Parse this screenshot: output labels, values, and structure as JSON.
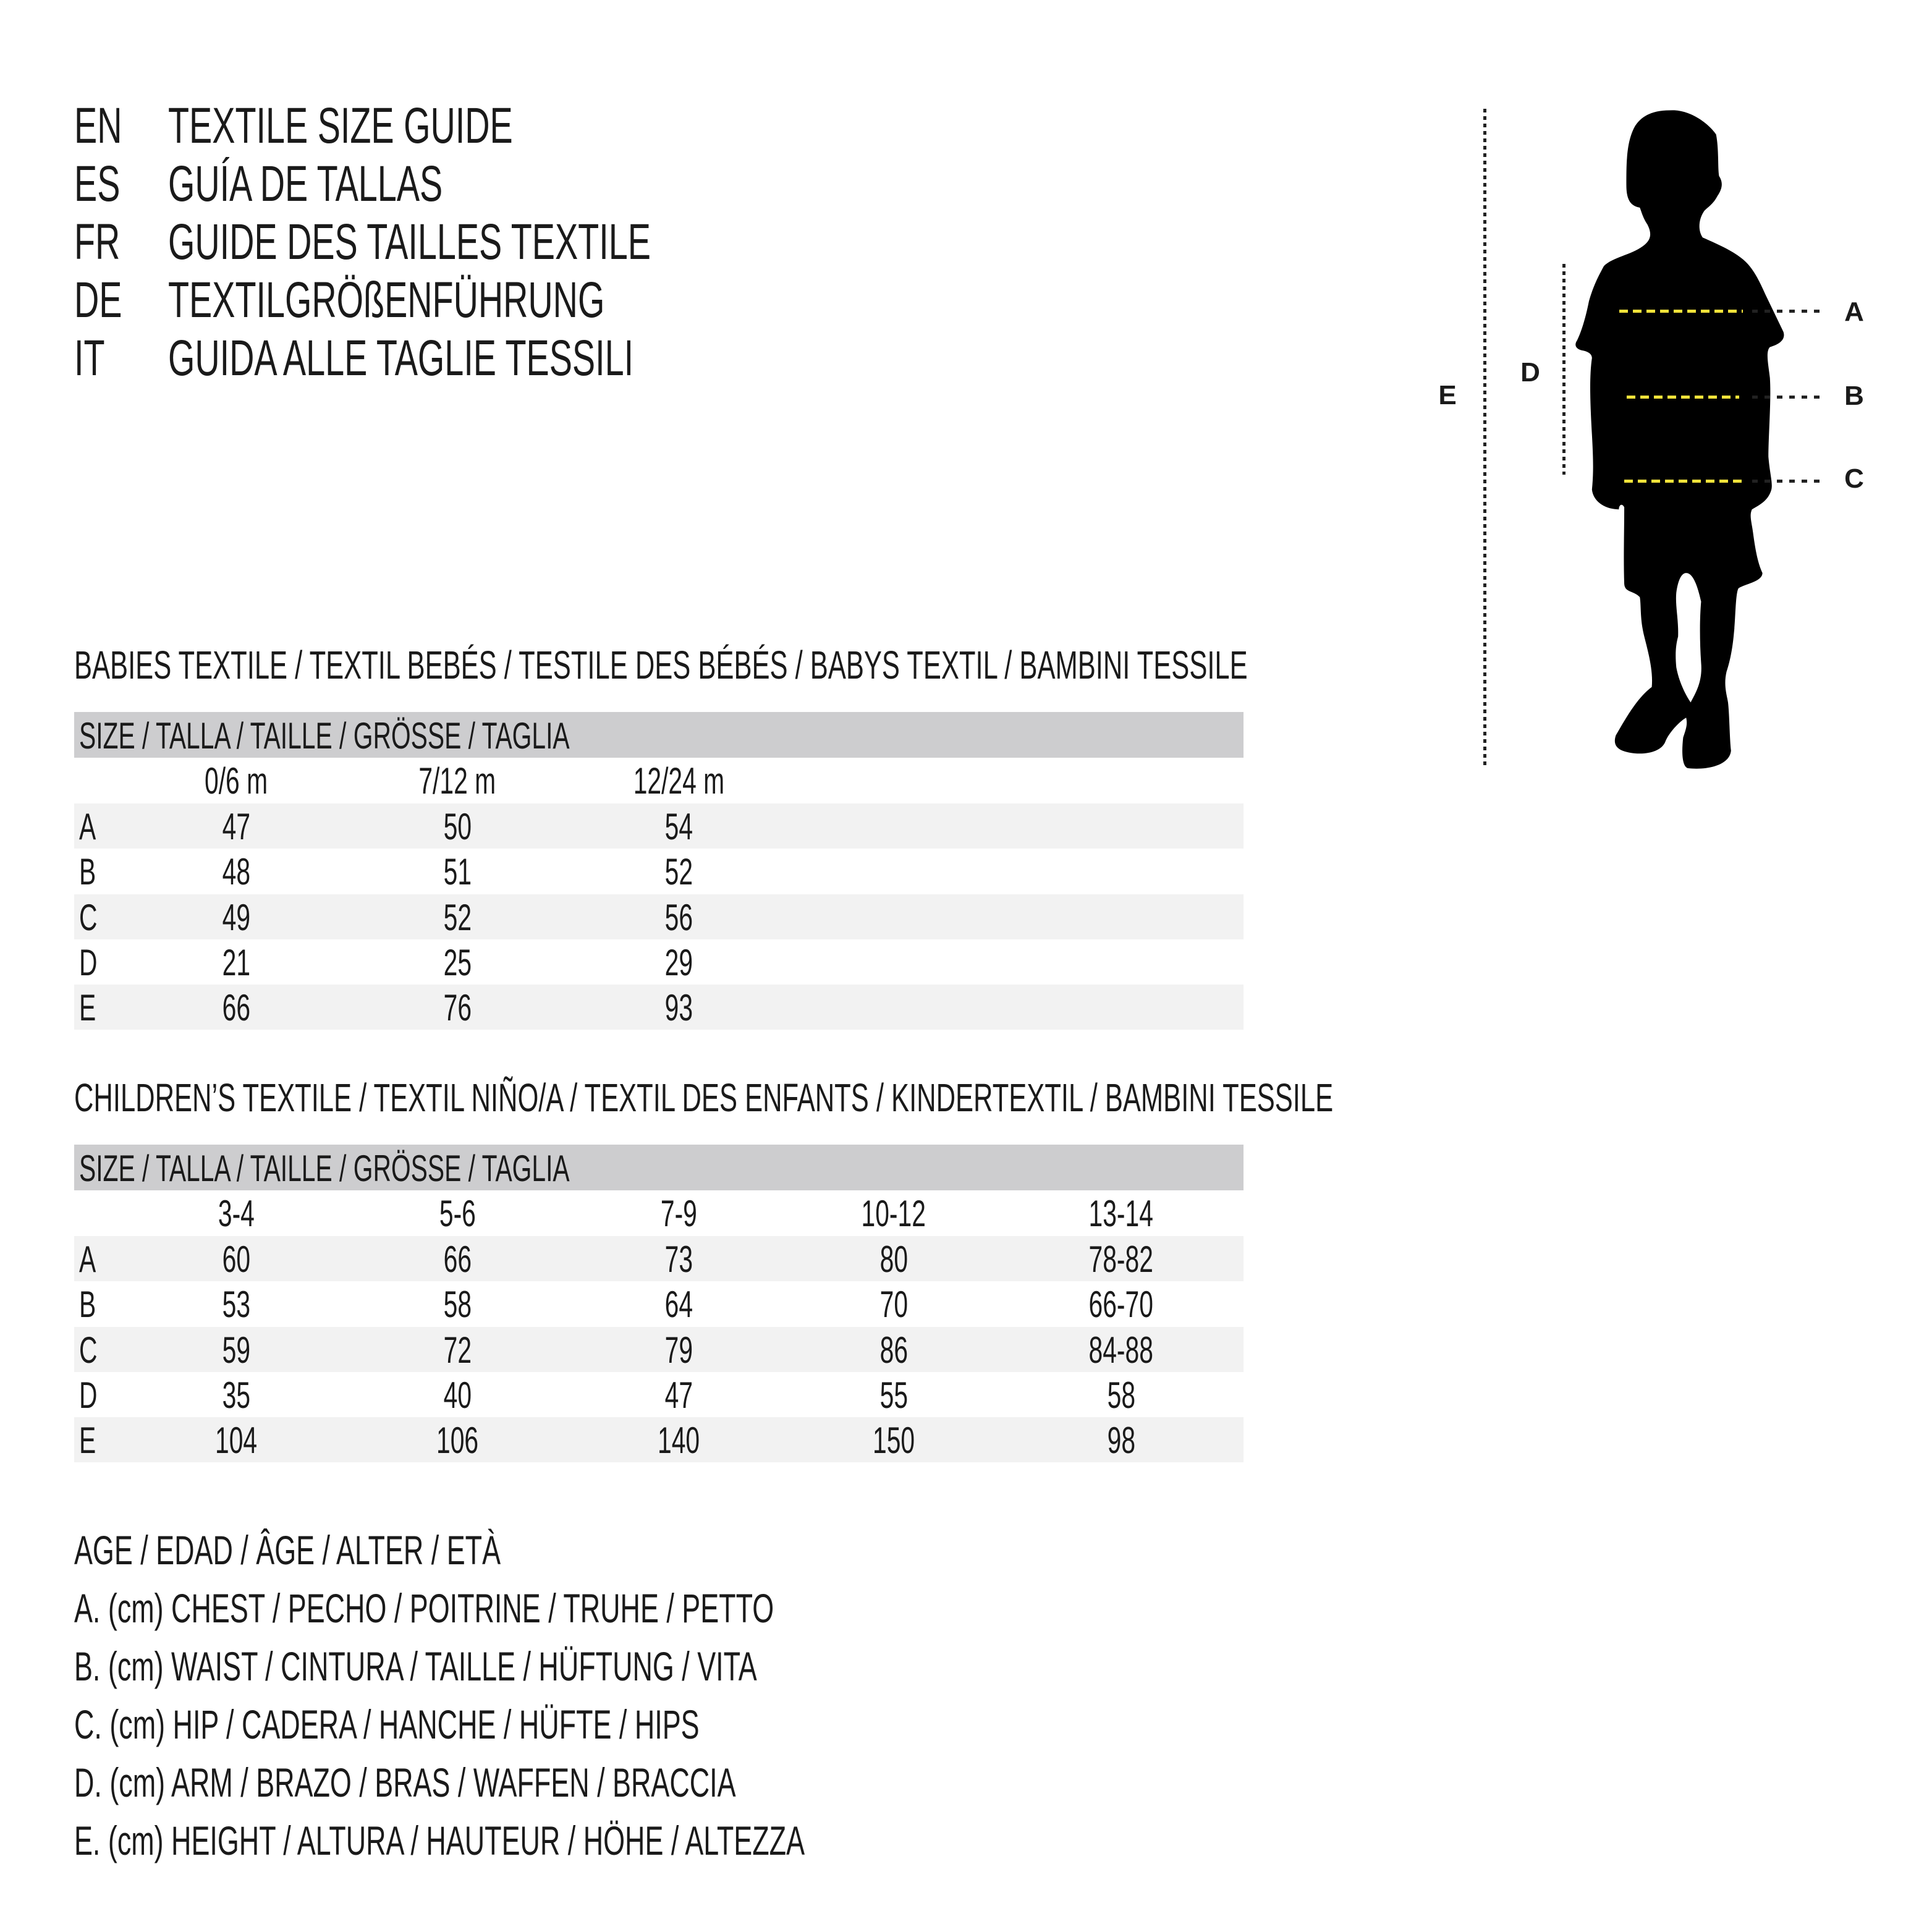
{
  "header": {
    "lines": [
      {
        "code": "EN",
        "text": "TEXTILE SIZE GUIDE"
      },
      {
        "code": "ES",
        "text": "GUÍA DE TALLAS"
      },
      {
        "code": "FR",
        "text": "GUIDE DES TAILLES TEXTILE"
      },
      {
        "code": "DE",
        "text": "TEXTILGRÖßENFÜHRUNG"
      },
      {
        "code": "IT",
        "text": "GUIDA ALLE TAGLIE TESSILI"
      }
    ]
  },
  "figure": {
    "labels": {
      "A": "A",
      "B": "B",
      "C": "C",
      "D": "D",
      "E": "E"
    },
    "colors": {
      "silhouette": "#000000",
      "measure_line": "#f2e23a",
      "guide_line": "#222222"
    }
  },
  "babies": {
    "title": "BABIES TEXTILE / TEXTIL BEBÉS / TESTILE DES BÉBÉS / BABYS TEXTIL / BAMBINI TESSILE",
    "size_header": "SIZE / TALLA / TAILLE / GRÖSSE / TAGLIA",
    "columns": [
      "0/6 m",
      "7/12 m",
      "12/24 m"
    ],
    "rows": [
      {
        "label": "A",
        "values": [
          "47",
          "50",
          "54"
        ]
      },
      {
        "label": "B",
        "values": [
          "48",
          "51",
          "52"
        ]
      },
      {
        "label": "C",
        "values": [
          "49",
          "52",
          "56"
        ]
      },
      {
        "label": "D",
        "values": [
          "21",
          "25",
          "29"
        ]
      },
      {
        "label": "E",
        "values": [
          "66",
          "76",
          "93"
        ]
      }
    ]
  },
  "children": {
    "title": "CHILDREN’S TEXTILE / TEXTIL NIÑO/A / TEXTIL DES ENFANTS / KINDERTEXTIL / BAMBINI TESSILE",
    "size_header": "SIZE / TALLA / TAILLE / GRÖSSE / TAGLIA",
    "columns": [
      "3-4",
      "5-6",
      "7-9",
      "10-12",
      "13-14"
    ],
    "rows": [
      {
        "label": "A",
        "values": [
          "60",
          "66",
          "73",
          "80",
          "78-82"
        ]
      },
      {
        "label": "B",
        "values": [
          "53",
          "58",
          "64",
          "70",
          "66-70"
        ]
      },
      {
        "label": "C",
        "values": [
          "59",
          "72",
          "79",
          "86",
          "84-88"
        ]
      },
      {
        "label": "D",
        "values": [
          "35",
          "40",
          "47",
          "55",
          "58"
        ]
      },
      {
        "label": "E",
        "values": [
          "104",
          "106",
          "140",
          "150",
          "98"
        ]
      }
    ]
  },
  "legend": [
    "AGE / EDAD / ÂGE / ALTER / ETÀ",
    "A. (cm) CHEST / PECHO / POITRINE / TRUHE / PETTO",
    "B. (cm) WAIST / CINTURA / TAILLE / HÜFTUNG / VITA",
    "C. (cm) HIP / CADERA / HANCHE / HÜFTE / HIPS",
    "D. (cm) ARM / BRAZO / BRAS / WAFFEN / BRACCIA",
    "E. (cm) HEIGHT / ALTURA / HAUTEUR / HÖHE / ALTEZZA"
  ]
}
